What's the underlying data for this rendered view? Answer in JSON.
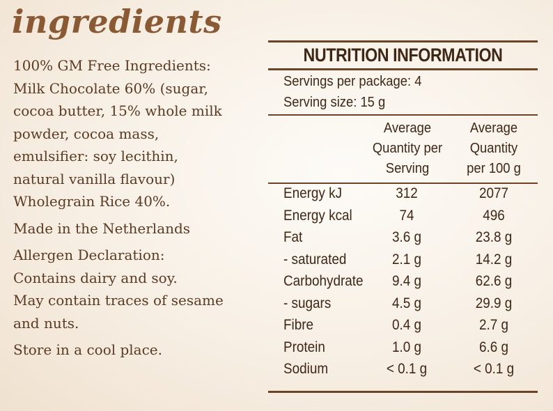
{
  "ingredients": {
    "heading": "ingredients",
    "lines": [
      "100% GM Free Ingredients:",
      "Milk Chocolate 60% (sugar,",
      "cocoa butter, 15% whole milk",
      "powder, cocoa mass,",
      "emulsifier: soy lecithin,",
      "natural vanilla flavour)",
      "Wholegrain Rice 40%."
    ],
    "origin": "Made in the Netherlands",
    "allergen_lines": [
      "Allergen Declaration:",
      "Contains dairy and soy.",
      "May contain traces of sesame",
      "and nuts."
    ],
    "storage": "Store in a cool place."
  },
  "nutrition": {
    "title": "NUTRITION INFORMATION",
    "servings_per_package": "Servings per package: 4",
    "serving_size": "Serving size: 15 g",
    "col1_header": [
      "Average",
      "Quantity per",
      "Serving"
    ],
    "col2_header": [
      "Average",
      "Quantity",
      "per 100 g"
    ],
    "rows": [
      {
        "name": "Energy kJ",
        "per_serving": "312",
        "per_100g": "2077"
      },
      {
        "name": "Energy kcal",
        "per_serving": "74",
        "per_100g": "496"
      },
      {
        "name": "Fat",
        "per_serving": "3.6 g",
        "per_100g": "23.8 g"
      },
      {
        "name": "- saturated",
        "per_serving": "2.1 g",
        "per_100g": "14.2 g"
      },
      {
        "name": "Carbohydrate",
        "per_serving": "9.4 g",
        "per_100g": "62.6 g"
      },
      {
        "name": "- sugars",
        "per_serving": "4.5 g",
        "per_100g": "29.9 g"
      },
      {
        "name": "Fibre",
        "per_serving": "0.4 g",
        "per_100g": "2.7 g"
      },
      {
        "name": "Protein",
        "per_serving": "1.0 g",
        "per_100g": "6.6 g"
      },
      {
        "name": "Sodium",
        "per_serving": "< 0.1 g",
        "per_100g": "< 0.1 g"
      }
    ]
  },
  "colors": {
    "heading": "#8a5a35",
    "text": "#5b3a22",
    "rules": "#6b4428"
  }
}
